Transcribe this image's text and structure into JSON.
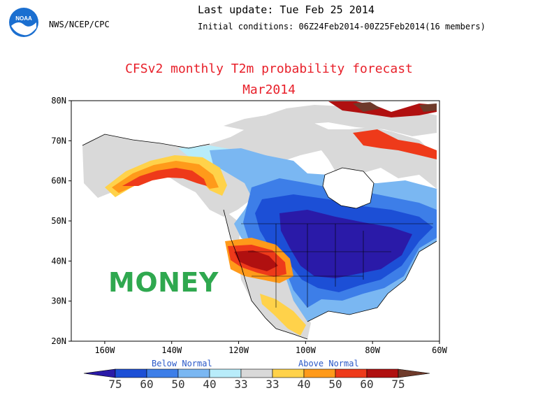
{
  "header": {
    "agency": "NWS/NCEP/CPC",
    "last_update": "Last update: Tue Feb 25 2014",
    "initial_conditions": "Initial conditions: 06Z24Feb2014-00Z25Feb2014(16 members)",
    "logo_text": "NOAA"
  },
  "title": {
    "line1": "CFSv2 monthly T2m probability forecast",
    "line2": "Mar2014"
  },
  "map": {
    "lat_labels": [
      "80N",
      "70N",
      "60N",
      "50N",
      "40N",
      "30N",
      "20N"
    ],
    "lon_labels": [
      "160W",
      "140W",
      "120W",
      "100W",
      "80W",
      "60W"
    ],
    "watermark": "MONEY",
    "lat_range": [
      20,
      80
    ],
    "lon_range": [
      -170,
      -60
    ]
  },
  "legend": {
    "below_label": "Below Normal",
    "above_label": "Above Normal",
    "values": [
      "75",
      "60",
      "50",
      "40",
      "33",
      "33",
      "40",
      "50",
      "60",
      "75"
    ],
    "colors": [
      "#2a1aa8",
      "#1c4fd6",
      "#3d7ee8",
      "#7ab7f2",
      "#b8ecfa",
      "#d9d9d9",
      "#ffd24a",
      "#ff9a1a",
      "#ee3a1a",
      "#b01010",
      "#6e3a2a"
    ]
  }
}
